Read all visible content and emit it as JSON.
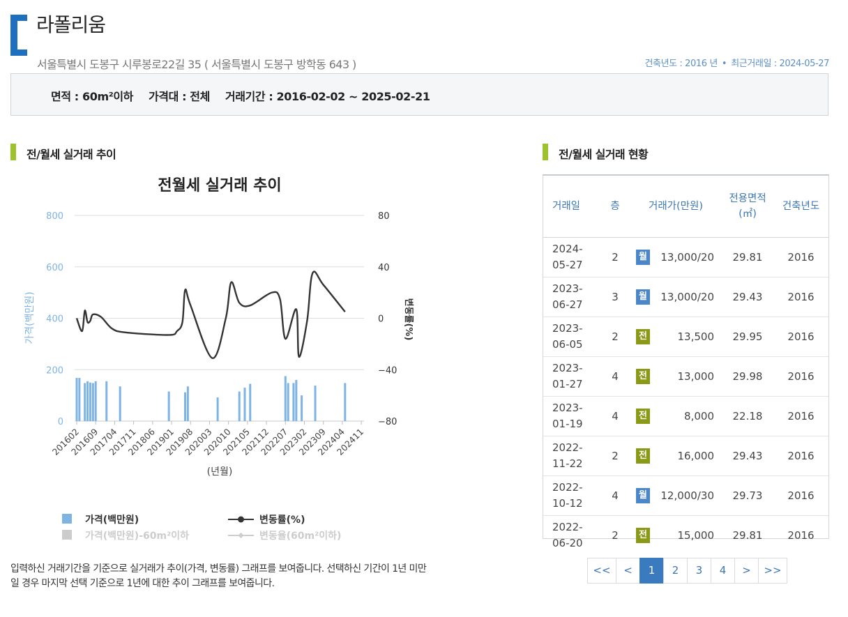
{
  "header": {
    "title": "라폴리움",
    "address": "서울특별시 도봉구 시루봉로22길 35 ( 서울특별시 도봉구 방학동 643 )",
    "built_year_text": "건축년도 : 2016 년",
    "separator": "•",
    "recent_trade_text": "최근거래일 : 2024-05-27"
  },
  "filters": {
    "area": "면적 :  60m²이하",
    "price_range": "가격대 :  전체",
    "period": "거래기간 :  2016-02-02 ~ 2025-02-21"
  },
  "chart_section": {
    "heading": "전/월세 실거래 추이",
    "note": "입력하신 거래기간을 기준으로 실거래가 추이(가격, 변동률) 그래프를 보여줍니다. 선택하신 기간이 1년 미만일 경우 마지막 선택 기준으로 1년에 대한 추이 그래프를 보여줍니다."
  },
  "chart_data": {
    "type": "bar",
    "title": "전월세 실거래 추이",
    "xlabel": "(년월)",
    "ylabel": "가격(백만원)",
    "y2label": "변동률(%)",
    "ylim": [
      0,
      800
    ],
    "y2lim": [
      -80,
      80
    ],
    "yticks": [
      0,
      200,
      400,
      600,
      800
    ],
    "y2ticks": [
      -80,
      -40,
      0,
      40,
      80
    ],
    "x_range": [
      "201602",
      "202412"
    ],
    "tick_labels": [
      "201602",
      "201609",
      "201704",
      "201711",
      "201806",
      "201901",
      "201908",
      "202003",
      "202010",
      "202105",
      "202112",
      "202207",
      "202302",
      "202309",
      "202404",
      "202411"
    ],
    "grid": true,
    "legend_position": "bottom",
    "series": [
      {
        "name": "가격(백만원)",
        "kind": "bar",
        "color": "#7eb3e6",
        "points": [
          [
            "201602",
            168
          ],
          [
            "201603",
            168
          ],
          [
            "201605",
            148
          ],
          [
            "201606",
            155
          ],
          [
            "201607",
            150
          ],
          [
            "201608",
            148
          ],
          [
            "201609",
            155
          ],
          [
            "201701",
            155
          ],
          [
            "201706",
            135
          ],
          [
            "201812",
            115
          ],
          [
            "201906",
            112
          ],
          [
            "201907",
            135
          ],
          [
            "202006",
            92
          ],
          [
            "202102",
            115
          ],
          [
            "202104",
            130
          ],
          [
            "202106",
            145
          ],
          [
            "202207",
            175
          ],
          [
            "202208",
            148
          ],
          [
            "202210",
            148
          ],
          [
            "202211",
            160
          ],
          [
            "202301",
            100
          ],
          [
            "202306",
            138
          ],
          [
            "202405",
            148
          ]
        ]
      },
      {
        "name": "변동률(%)",
        "kind": "line",
        "color": "#333333",
        "points": [
          [
            "201602",
            0
          ],
          [
            "201604",
            -10
          ],
          [
            "201605",
            6
          ],
          [
            "201606",
            -3
          ],
          [
            "201607",
            -2
          ],
          [
            "201608",
            3
          ],
          [
            "201611",
            1
          ],
          [
            "201703",
            -8
          ],
          [
            "201708",
            -11
          ],
          [
            "201812",
            -13
          ],
          [
            "201903",
            -10
          ],
          [
            "201905",
            -3
          ],
          [
            "201906",
            22
          ],
          [
            "201908",
            10
          ],
          [
            "202004",
            -31
          ],
          [
            "202009",
            0
          ],
          [
            "202011",
            28
          ],
          [
            "202102",
            12
          ],
          [
            "202106",
            10
          ],
          [
            "202202",
            20
          ],
          [
            "202205",
            15
          ],
          [
            "202207",
            -16
          ],
          [
            "202211",
            7
          ],
          [
            "202212",
            -30
          ],
          [
            "202303",
            -2
          ],
          [
            "202305",
            35
          ],
          [
            "202309",
            26
          ],
          [
            "202405",
            5
          ]
        ]
      }
    ],
    "inactive_legend": [
      "가격(백만원)-60m²이하",
      "변동율(60m²이하)"
    ]
  },
  "table_section": {
    "heading": "전/월세 실거래 현황",
    "columns": [
      "거래일",
      "층",
      "거래가(만원)",
      "전용면적(㎡)",
      "건축년도"
    ],
    "rows": [
      {
        "date": "2024-05-27",
        "floor": "2",
        "type": "월",
        "price": "13,000/20",
        "area": "29.81",
        "year": "2016"
      },
      {
        "date": "2023-06-27",
        "floor": "3",
        "type": "월",
        "price": "13,000/20",
        "area": "29.43",
        "year": "2016"
      },
      {
        "date": "2023-06-05",
        "floor": "2",
        "type": "전",
        "price": "13,500",
        "area": "29.95",
        "year": "2016"
      },
      {
        "date": "2023-01-27",
        "floor": "4",
        "type": "전",
        "price": "13,000",
        "area": "29.98",
        "year": "2016"
      },
      {
        "date": "2023-01-19",
        "floor": "4",
        "type": "전",
        "price": "8,000",
        "area": "22.18",
        "year": "2016"
      },
      {
        "date": "2022-11-22",
        "floor": "2",
        "type": "전",
        "price": "16,000",
        "area": "29.43",
        "year": "2016"
      },
      {
        "date": "2022-10-12",
        "floor": "4",
        "type": "월",
        "price": "12,000/30",
        "area": "29.73",
        "year": "2016"
      },
      {
        "date": "2022-06-20",
        "floor": "2",
        "type": "전",
        "price": "15,000",
        "area": "29.81",
        "year": "2016"
      }
    ],
    "badge_colors": {
      "월": "#4a86c8",
      "전": "#8a9a17"
    }
  },
  "pagination": {
    "first": "<<",
    "prev": "<",
    "pages": [
      "1",
      "2",
      "3",
      "4"
    ],
    "current": "1",
    "next": ">",
    "last": ">>"
  },
  "colors": {
    "accent_blue": "#1f6fbf",
    "section_green": "#9cc22d"
  }
}
